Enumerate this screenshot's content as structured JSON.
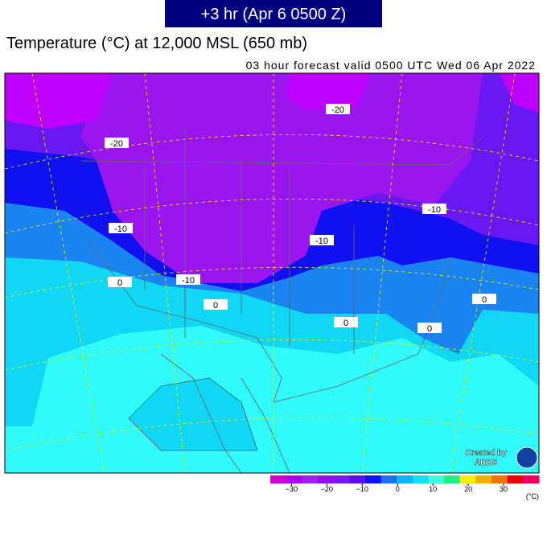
{
  "header": "+3 hr (Apr 6 0500 Z)",
  "title": "Temperature (°C) at 12,000 MSL (650 mb)",
  "subtitle": "03 hour forecast valid 0500 UTC Wed 06 Apr 2022",
  "contour_labels": [
    "-20",
    "-20",
    "-10",
    "-10",
    "-10",
    "-10",
    "0",
    "0",
    "0",
    "0",
    "0"
  ],
  "credit": {
    "line1": "Created by",
    "line2": "ADDS"
  },
  "colorbar": {
    "lim": [
      -36,
      40
    ],
    "colors": [
      "#d000d0",
      "#b000f0",
      "#a020f0",
      "#9010f0",
      "#7a1af0",
      "#5a10f0",
      "#1010f0",
      "#1a70f0",
      "#10b0f8",
      "#10e0f8",
      "#40ffe0",
      "#20f080",
      "#f0f000",
      "#f0b000",
      "#f07000",
      "#f00000",
      "#f00060"
    ],
    "ticks": [
      {
        "value": -30,
        "label": "−30"
      },
      {
        "value": -20,
        "label": "−20"
      },
      {
        "value": -10,
        "label": "−10"
      },
      0,
      10,
      20,
      30
    ],
    "unit": "(°C)"
  }
}
